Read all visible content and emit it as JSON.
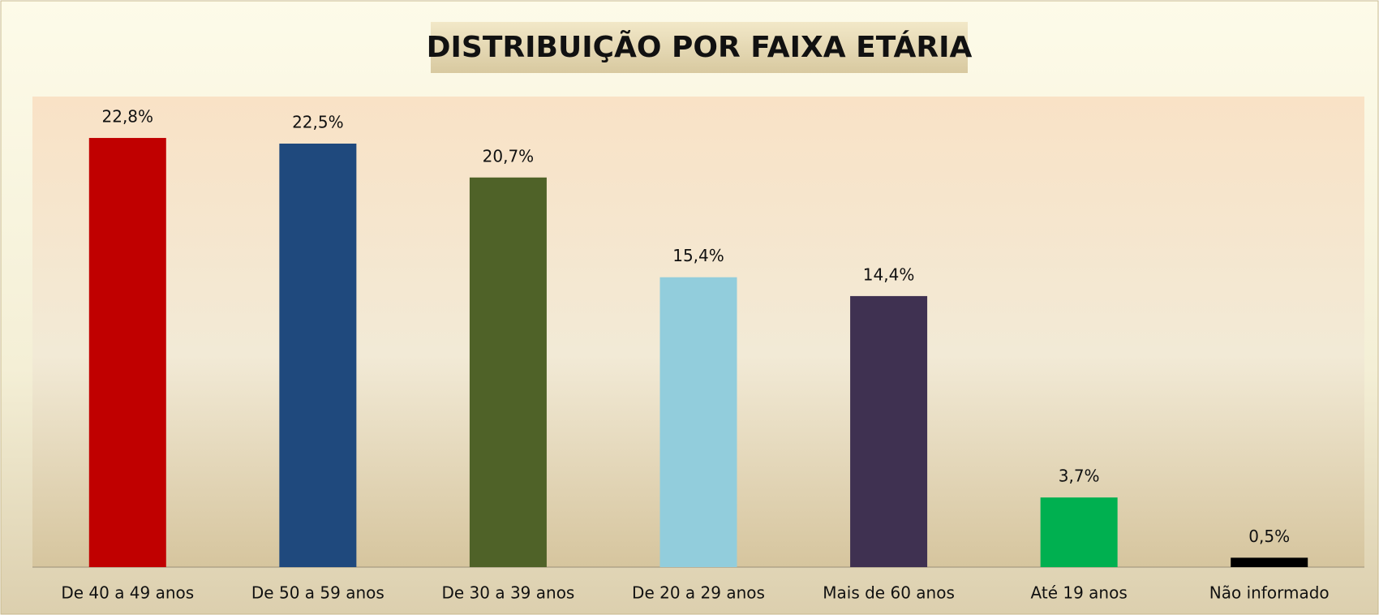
{
  "chart_data": {
    "type": "bar",
    "title": "DISTRIBUIÇÃO POR FAIXA ETÁRIA",
    "categories": [
      "De 40 a 49 anos",
      "De 50 a 59 anos",
      "De 30 a 39 anos",
      "De 20 a 29 anos",
      "Mais de 60 anos",
      "Até 19 anos",
      "Não informado"
    ],
    "values": [
      22.8,
      22.5,
      20.7,
      15.4,
      14.4,
      3.7,
      0.5
    ],
    "value_labels": [
      "22,8%",
      "22,5%",
      "20,7%",
      "15,4%",
      "14,4%",
      "3,7%",
      "0,5%"
    ],
    "colors": [
      "#c00000",
      "#1f497d",
      "#4f6228",
      "#92cddc",
      "#3f3151",
      "#00b050",
      "#000000"
    ],
    "ylim": [
      0,
      25
    ]
  }
}
